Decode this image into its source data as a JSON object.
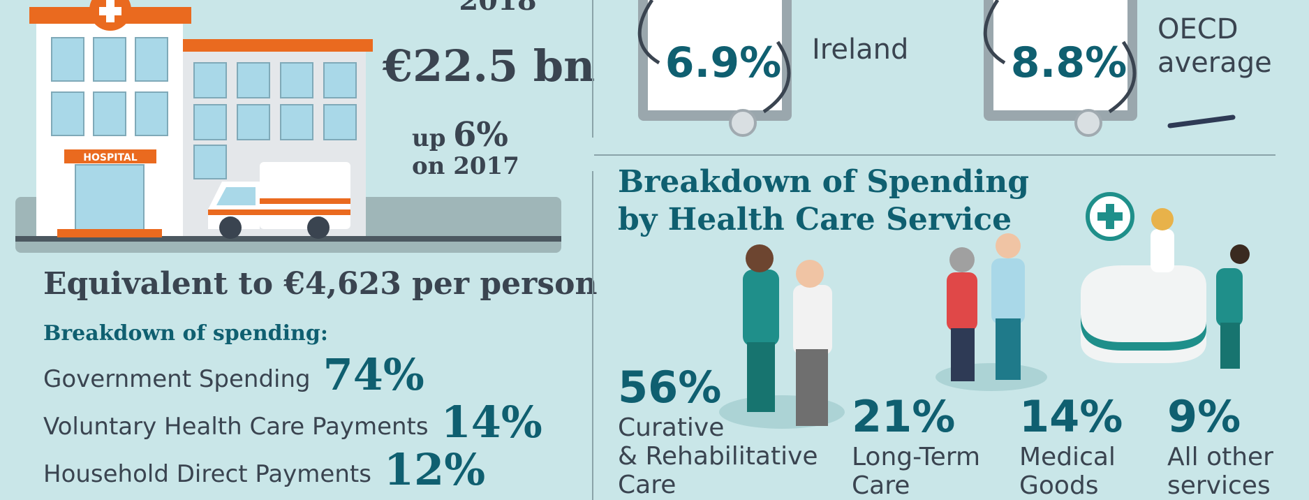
{
  "header": {
    "year": "2018",
    "total": "€22.5 bn",
    "change_prefix": "up",
    "change": "6%",
    "change_suffix": "on 2017",
    "hospital_sign": "HOSPITAL"
  },
  "per_person": "Equivalent to €4,623 per person",
  "financing": {
    "title": "Breakdown of spending:",
    "items": [
      {
        "label": "Government Spending",
        "share": "74%"
      },
      {
        "label": "Voluntary Health Care Payments",
        "share": "14%"
      },
      {
        "label": "Household Direct Payments",
        "share": "12%"
      }
    ]
  },
  "comparison": [
    {
      "value": "6.9%",
      "label": [
        "Ireland"
      ]
    },
    {
      "value": "8.8%",
      "label": [
        "OECD",
        "average"
      ]
    }
  ],
  "services": {
    "title": [
      "Breakdown of Spending",
      "by Health Care Service"
    ],
    "items": [
      {
        "share": "56%",
        "label": [
          "Curative",
          "& Rehabilitative",
          "Care"
        ]
      },
      {
        "share": "21%",
        "label": [
          "Long-Term",
          "Care"
        ]
      },
      {
        "share": "14%",
        "label": [
          "Medical",
          "Goods"
        ]
      },
      {
        "share": "9%",
        "label": [
          "All other",
          "services"
        ]
      }
    ]
  }
}
